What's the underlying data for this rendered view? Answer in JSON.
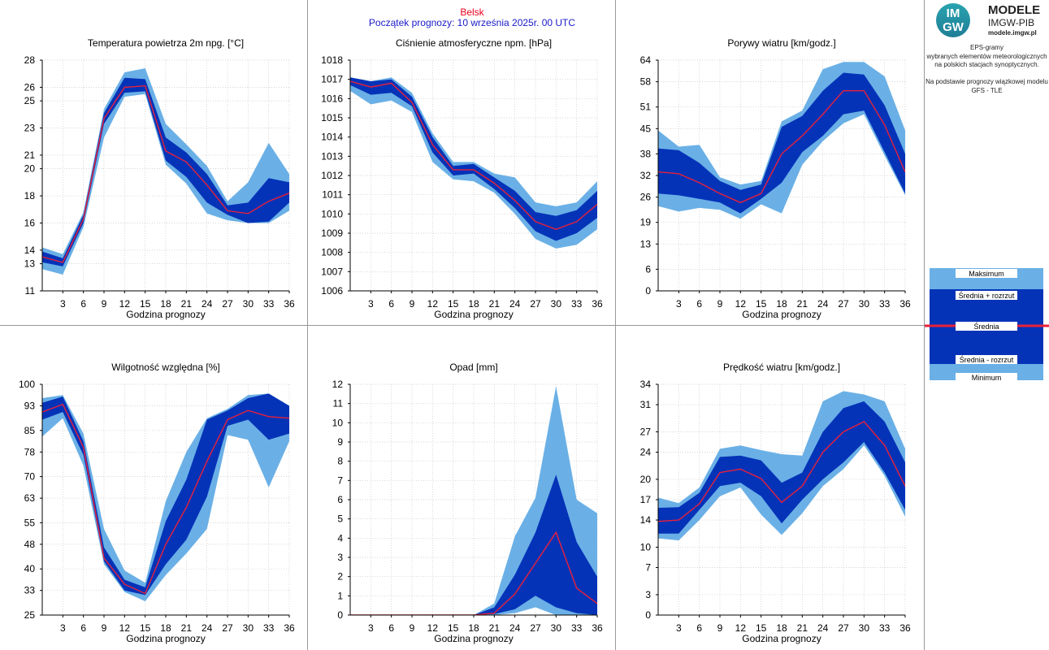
{
  "header": {
    "station": "Belsk",
    "forecast_start": "Początek prognozy: 10 września 2025r. 00 UTC",
    "station_color": "#e8001c",
    "forecast_color": "#1a1ac8"
  },
  "logo": {
    "mark_top": "IM",
    "mark_bottom": "GW",
    "line1": "MODELE",
    "line2": "IMGW-PIB",
    "line3": "modele.imgw.pl"
  },
  "description": [
    "EPS-gramy",
    "wybranych elementów meteorologicznych",
    "na polskich stacjach  synoptycznych.",
    "",
    "Na podstawie prognozy wiązkowej modelu",
    "GFS - TLE"
  ],
  "legend": {
    "items": [
      "Maksimum",
      "Średnia + rozrzut",
      "Średnia",
      "Średnia - rozrzut",
      "Minimum"
    ]
  },
  "colors": {
    "band_outer": "#6ab0e6",
    "band_inner": "#0533b8",
    "mean_line": "#e8203a",
    "grid": "#c8c8c8"
  },
  "chart_data": [
    {
      "type": "area",
      "title": "Temperatura powietrza 2m npg. [°C]",
      "xlabel": "Godzina prognozy",
      "x": [
        0,
        3,
        6,
        9,
        12,
        15,
        18,
        21,
        24,
        27,
        30,
        33,
        36
      ],
      "xticks": [
        3,
        6,
        9,
        12,
        15,
        18,
        21,
        24,
        27,
        30,
        33,
        36
      ],
      "ylim": [
        11,
        28
      ],
      "yticks": [
        11,
        13,
        14,
        16,
        18,
        20,
        21,
        23,
        25,
        26,
        28
      ],
      "max": [
        14.2,
        13.7,
        16.8,
        24.4,
        27.1,
        27.4,
        23.3,
        21.8,
        20.2,
        17.6,
        19.0,
        21.9,
        19.6
      ],
      "mean_plus": [
        13.9,
        13.4,
        16.6,
        24.1,
        26.7,
        26.6,
        22.3,
        21.2,
        19.6,
        17.3,
        17.5,
        19.3,
        19.0
      ],
      "mean": [
        13.5,
        13.1,
        16.3,
        23.7,
        26.0,
        26.1,
        21.3,
        20.5,
        18.8,
        16.9,
        16.7,
        17.6,
        18.2
      ],
      "mean_minus": [
        13.1,
        12.8,
        16.0,
        23.3,
        25.6,
        25.7,
        20.6,
        19.4,
        17.5,
        16.6,
        16.0,
        16.1,
        17.5
      ],
      "min": [
        12.6,
        12.2,
        15.7,
        22.3,
        25.3,
        25.5,
        20.3,
        18.9,
        16.7,
        16.2,
        16.0,
        16.0,
        16.9
      ]
    },
    {
      "type": "area",
      "title": "Ciśnienie atmosferyczne npm. [hPa]",
      "xlabel": "Godzina prognozy",
      "x": [
        0,
        3,
        6,
        9,
        12,
        15,
        18,
        21,
        24,
        27,
        30,
        33,
        36
      ],
      "xticks": [
        3,
        6,
        9,
        12,
        15,
        18,
        21,
        24,
        27,
        30,
        33,
        36
      ],
      "ylim": [
        1006,
        1018
      ],
      "yticks": [
        1006,
        1007,
        1008,
        1009,
        1010,
        1011,
        1012,
        1013,
        1014,
        1015,
        1016,
        1017,
        1018
      ],
      "max": [
        1017.1,
        1016.9,
        1017.1,
        1016.3,
        1014.2,
        1012.7,
        1012.7,
        1012.1,
        1011.9,
        1010.6,
        1010.4,
        1010.6,
        1011.7
      ],
      "mean_plus": [
        1017.1,
        1016.9,
        1017.0,
        1016.1,
        1014.0,
        1012.5,
        1012.6,
        1011.9,
        1011.2,
        1010.1,
        1009.9,
        1010.2,
        1011.2
      ],
      "mean": [
        1016.9,
        1016.6,
        1016.8,
        1015.8,
        1013.6,
        1012.3,
        1012.3,
        1011.6,
        1010.7,
        1009.6,
        1009.2,
        1009.6,
        1010.5
      ],
      "mean_minus": [
        1016.7,
        1016.2,
        1016.3,
        1015.6,
        1013.2,
        1012.0,
        1012.1,
        1011.3,
        1010.3,
        1009.1,
        1008.6,
        1009.0,
        1009.8
      ],
      "min": [
        1016.4,
        1015.7,
        1015.9,
        1015.3,
        1012.7,
        1011.8,
        1011.7,
        1011.1,
        1010.0,
        1008.7,
        1008.2,
        1008.4,
        1009.2
      ]
    },
    {
      "type": "area",
      "title": "Porywy wiatru [km/godz.]",
      "xlabel": "Godzina prognozy",
      "x": [
        0,
        3,
        6,
        9,
        12,
        15,
        18,
        21,
        24,
        27,
        30,
        33,
        36
      ],
      "xticks": [
        3,
        6,
        9,
        12,
        15,
        18,
        21,
        24,
        27,
        30,
        33,
        36
      ],
      "ylim": [
        0,
        64
      ],
      "yticks": [
        0,
        6,
        13,
        19,
        26,
        32,
        38,
        45,
        51,
        58,
        64
      ],
      "max": [
        44.5,
        40.0,
        40.5,
        31.5,
        29.5,
        30.5,
        47.0,
        50.0,
        61.5,
        63.5,
        63.5,
        59.5,
        44.5
      ],
      "mean_plus": [
        39.5,
        39.0,
        35.5,
        30.5,
        28.0,
        29.5,
        45.5,
        48.5,
        55.5,
        60.5,
        60.0,
        51.5,
        38.0
      ],
      "mean": [
        33.0,
        32.5,
        30.0,
        27.0,
        24.5,
        27.0,
        38.0,
        43.0,
        49.0,
        55.5,
        55.5,
        46.0,
        33.0
      ],
      "mean_minus": [
        27.0,
        26.5,
        25.5,
        24.5,
        21.5,
        25.5,
        30.0,
        38.5,
        43.0,
        49.0,
        50.0,
        38.5,
        27.0
      ],
      "min": [
        23.5,
        22.0,
        23.0,
        22.5,
        20.0,
        24.0,
        21.5,
        35.0,
        41.5,
        46.5,
        49.0,
        37.5,
        26.5
      ]
    },
    {
      "type": "area",
      "title": "Wilgotność względna [%]",
      "xlabel": "Godzina prognozy",
      "x": [
        0,
        3,
        6,
        9,
        12,
        15,
        18,
        21,
        24,
        27,
        30,
        33,
        36
      ],
      "xticks": [
        3,
        6,
        9,
        12,
        15,
        18,
        21,
        24,
        27,
        30,
        33,
        36
      ],
      "ylim": [
        25,
        100
      ],
      "yticks": [
        25,
        33,
        40,
        48,
        55,
        63,
        70,
        78,
        85,
        93,
        100
      ],
      "max": [
        95.5,
        96.5,
        84.0,
        53.0,
        39.5,
        35.5,
        62.0,
        78.0,
        89.0,
        92.0,
        96.5,
        97.0,
        93.0
      ],
      "mean_plus": [
        94.0,
        96.0,
        81.5,
        47.0,
        36.5,
        34.0,
        55.5,
        69.0,
        88.5,
        91.5,
        95.5,
        97.0,
        93.0
      ],
      "mean": [
        91.0,
        93.5,
        79.5,
        43.5,
        35.0,
        32.0,
        48.0,
        60.0,
        75.0,
        88.5,
        91.5,
        89.5,
        89.0
      ],
      "mean_minus": [
        88.5,
        91.0,
        77.0,
        42.5,
        33.0,
        31.5,
        41.5,
        49.5,
        63.5,
        86.5,
        88.5,
        82.0,
        84.0
      ],
      "min": [
        83.0,
        89.0,
        73.5,
        41.5,
        32.5,
        29.5,
        38.0,
        45.0,
        53.0,
        83.5,
        82.0,
        66.5,
        81.5
      ]
    },
    {
      "type": "area",
      "title": "Opad [mm]",
      "xlabel": "Godzina prognozy",
      "x": [
        0,
        3,
        6,
        9,
        12,
        15,
        18,
        21,
        24,
        27,
        30,
        33,
        36
      ],
      "xticks": [
        3,
        6,
        9,
        12,
        15,
        18,
        21,
        24,
        27,
        30,
        33,
        36
      ],
      "ylim": [
        0,
        12
      ],
      "yticks": [
        0,
        1,
        2,
        3,
        4,
        5,
        6,
        7,
        8,
        9,
        10,
        11,
        12
      ],
      "max": [
        0,
        0,
        0,
        0,
        0,
        0,
        0,
        0.6,
        4.1,
        6.1,
        11.9,
        6.0,
        5.3
      ],
      "mean_plus": [
        0,
        0,
        0,
        0,
        0,
        0,
        0,
        0.4,
        2.1,
        4.3,
        7.3,
        3.8,
        2.0
      ],
      "mean": [
        0,
        0,
        0,
        0,
        0,
        0,
        0,
        0.1,
        1.1,
        2.7,
        4.3,
        1.4,
        0.6
      ],
      "mean_minus": [
        0,
        0,
        0,
        0,
        0,
        0,
        0,
        0.05,
        0.3,
        1.0,
        0.4,
        0.1,
        0
      ],
      "min": [
        0,
        0,
        0,
        0,
        0,
        0,
        0,
        0,
        0.1,
        0.4,
        0,
        0,
        0
      ]
    },
    {
      "type": "area",
      "title": "Prędkość wiatru [km/godz.]",
      "xlabel": "Godzina prognozy",
      "x": [
        0,
        3,
        6,
        9,
        12,
        15,
        18,
        21,
        24,
        27,
        30,
        33,
        36
      ],
      "xticks": [
        3,
        6,
        9,
        12,
        15,
        18,
        21,
        24,
        27,
        30,
        33,
        36
      ],
      "ylim": [
        0,
        34
      ],
      "yticks": [
        0,
        3,
        7,
        10,
        14,
        17,
        20,
        24,
        27,
        31,
        34
      ],
      "max": [
        17.3,
        16.5,
        18.8,
        24.5,
        25.0,
        24.3,
        23.7,
        23.5,
        31.5,
        33.0,
        32.5,
        31.5,
        24.5
      ],
      "mean_plus": [
        15.8,
        15.9,
        18.0,
        23.3,
        23.5,
        22.8,
        19.5,
        21.0,
        27.0,
        30.5,
        31.5,
        28.5,
        22.5
      ],
      "mean": [
        13.8,
        14.0,
        16.4,
        21.0,
        21.5,
        20.1,
        16.6,
        19.0,
        24.0,
        27.0,
        28.5,
        25.0,
        19.0
      ],
      "mean_minus": [
        12.0,
        12.0,
        15.5,
        19.0,
        19.5,
        17.5,
        13.5,
        17.0,
        20.0,
        22.5,
        25.5,
        21.0,
        15.5
      ],
      "min": [
        11.3,
        11.0,
        14.0,
        17.5,
        18.8,
        14.8,
        11.8,
        15.0,
        19.0,
        21.5,
        25.0,
        20.5,
        14.5
      ]
    }
  ]
}
